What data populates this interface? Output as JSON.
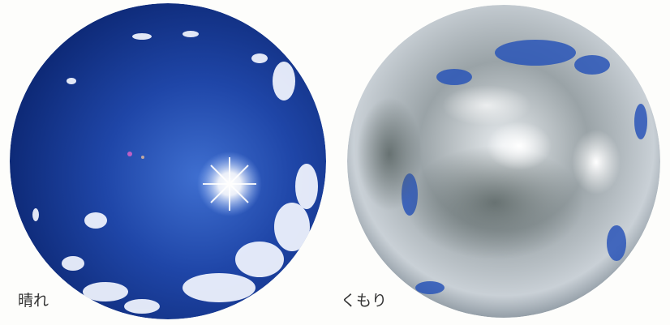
{
  "images": [
    {
      "label": "晴れ"
    },
    {
      "label": "くもり"
    }
  ]
}
